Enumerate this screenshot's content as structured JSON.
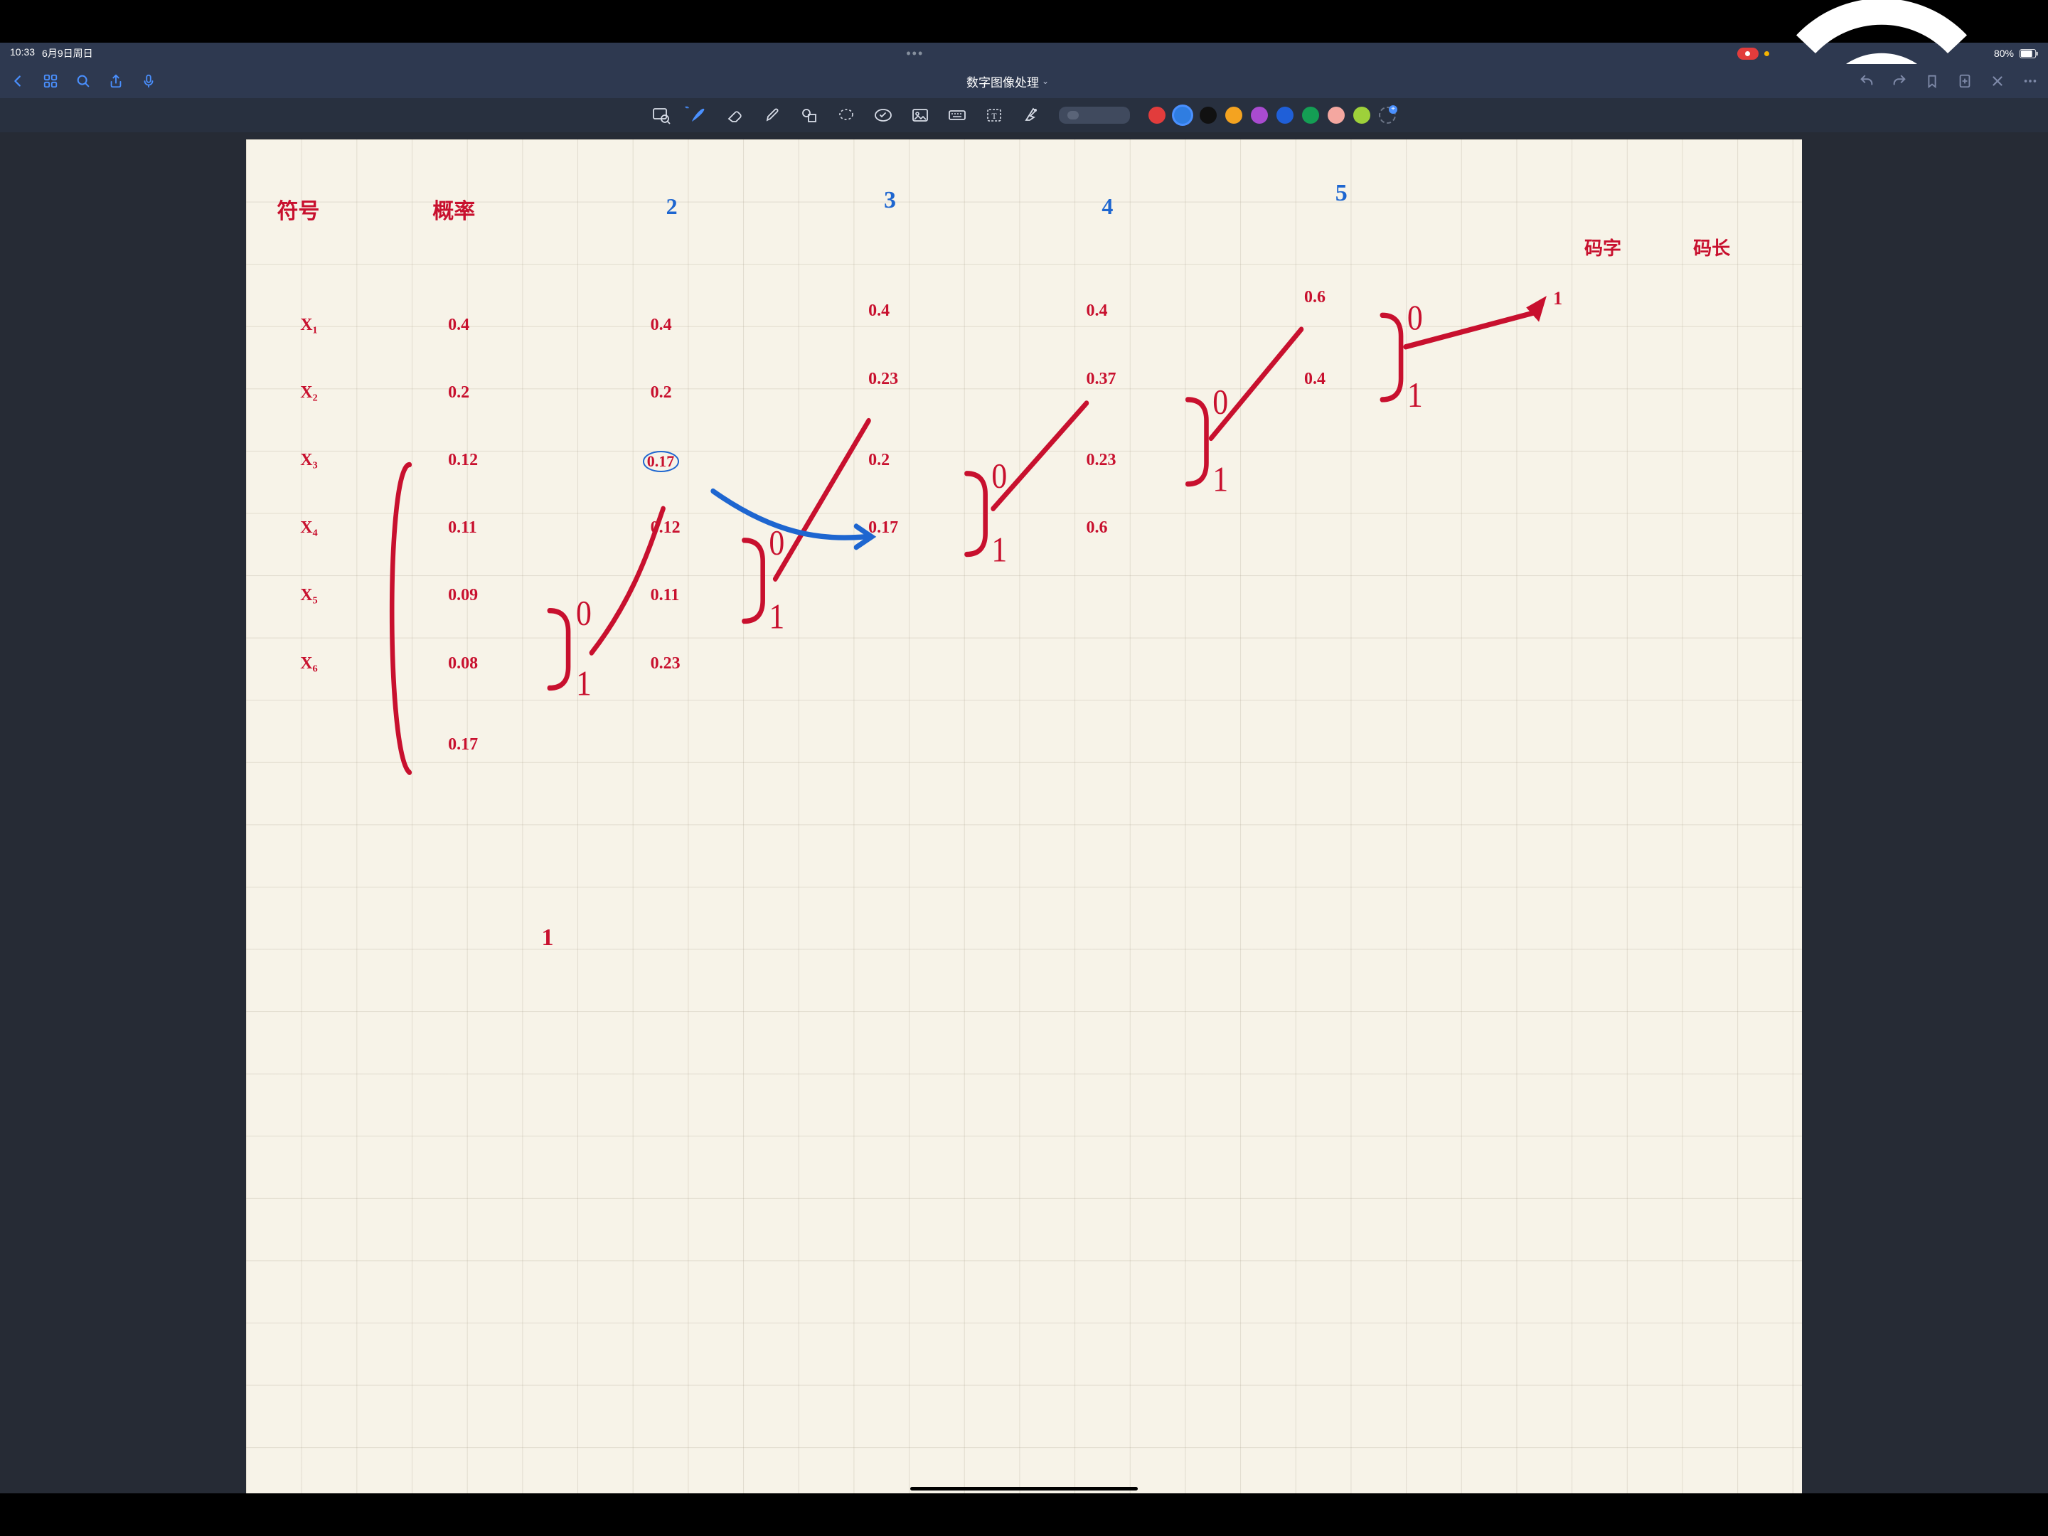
{
  "status": {
    "time": "10:33",
    "date": "6月9日周日",
    "battery": "80%"
  },
  "nav": {
    "title": "数字图像处理"
  },
  "palette": {
    "colors": [
      "#e23c3c",
      "#2f7de1",
      "#111111",
      "#f4a320",
      "#a94bd0",
      "#1f5fd8",
      "#149e54",
      "#f4a7a0",
      "#9ed13a"
    ],
    "selectedIndex": 1
  },
  "handwriting": {
    "ink_red": "#c8102e",
    "ink_blue": "#1e66d0",
    "paper_bg": "#f7f3e8",
    "font": "Comic Sans MS",
    "headers": {
      "symbol": "符号",
      "prob": "概率",
      "c2": "2",
      "c3": "3",
      "c4": "4",
      "c5": "5",
      "codeword": "码字",
      "codelen": "码长"
    },
    "symbols": [
      "X₁",
      "X₂",
      "X₃",
      "X₄",
      "X₅",
      "X₆"
    ],
    "col_prob": [
      "0.4",
      "0.2",
      "0.12",
      "0.11",
      "0.09",
      "0.08",
      "0.17"
    ],
    "col2": [
      "0.4",
      "0.2",
      "0.17",
      "0.12",
      "0.11",
      "0.23"
    ],
    "col3": [
      "0.4",
      "0.23",
      "0.2",
      "0.17"
    ],
    "col4": [
      "0.4",
      "0.37",
      "0.23",
      "0.6"
    ],
    "col5": [
      "0.6",
      "0.4"
    ],
    "brackets": [
      {
        "col": "prob",
        "pair": [
          4,
          5
        ],
        "labels": [
          "0",
          "1"
        ]
      },
      {
        "col": "2",
        "pair": [
          3,
          4
        ],
        "labels": [
          "0",
          "1"
        ]
      },
      {
        "col": "3",
        "pair": [
          2,
          3
        ],
        "labels": [
          "0",
          "1"
        ]
      },
      {
        "col": "4",
        "pair": [
          1,
          2
        ],
        "labels": [
          "0",
          "1"
        ]
      },
      {
        "col": "5",
        "pair": [
          0,
          1
        ],
        "labels": [
          "0",
          "1"
        ]
      }
    ],
    "final": "1",
    "stray": "1"
  }
}
